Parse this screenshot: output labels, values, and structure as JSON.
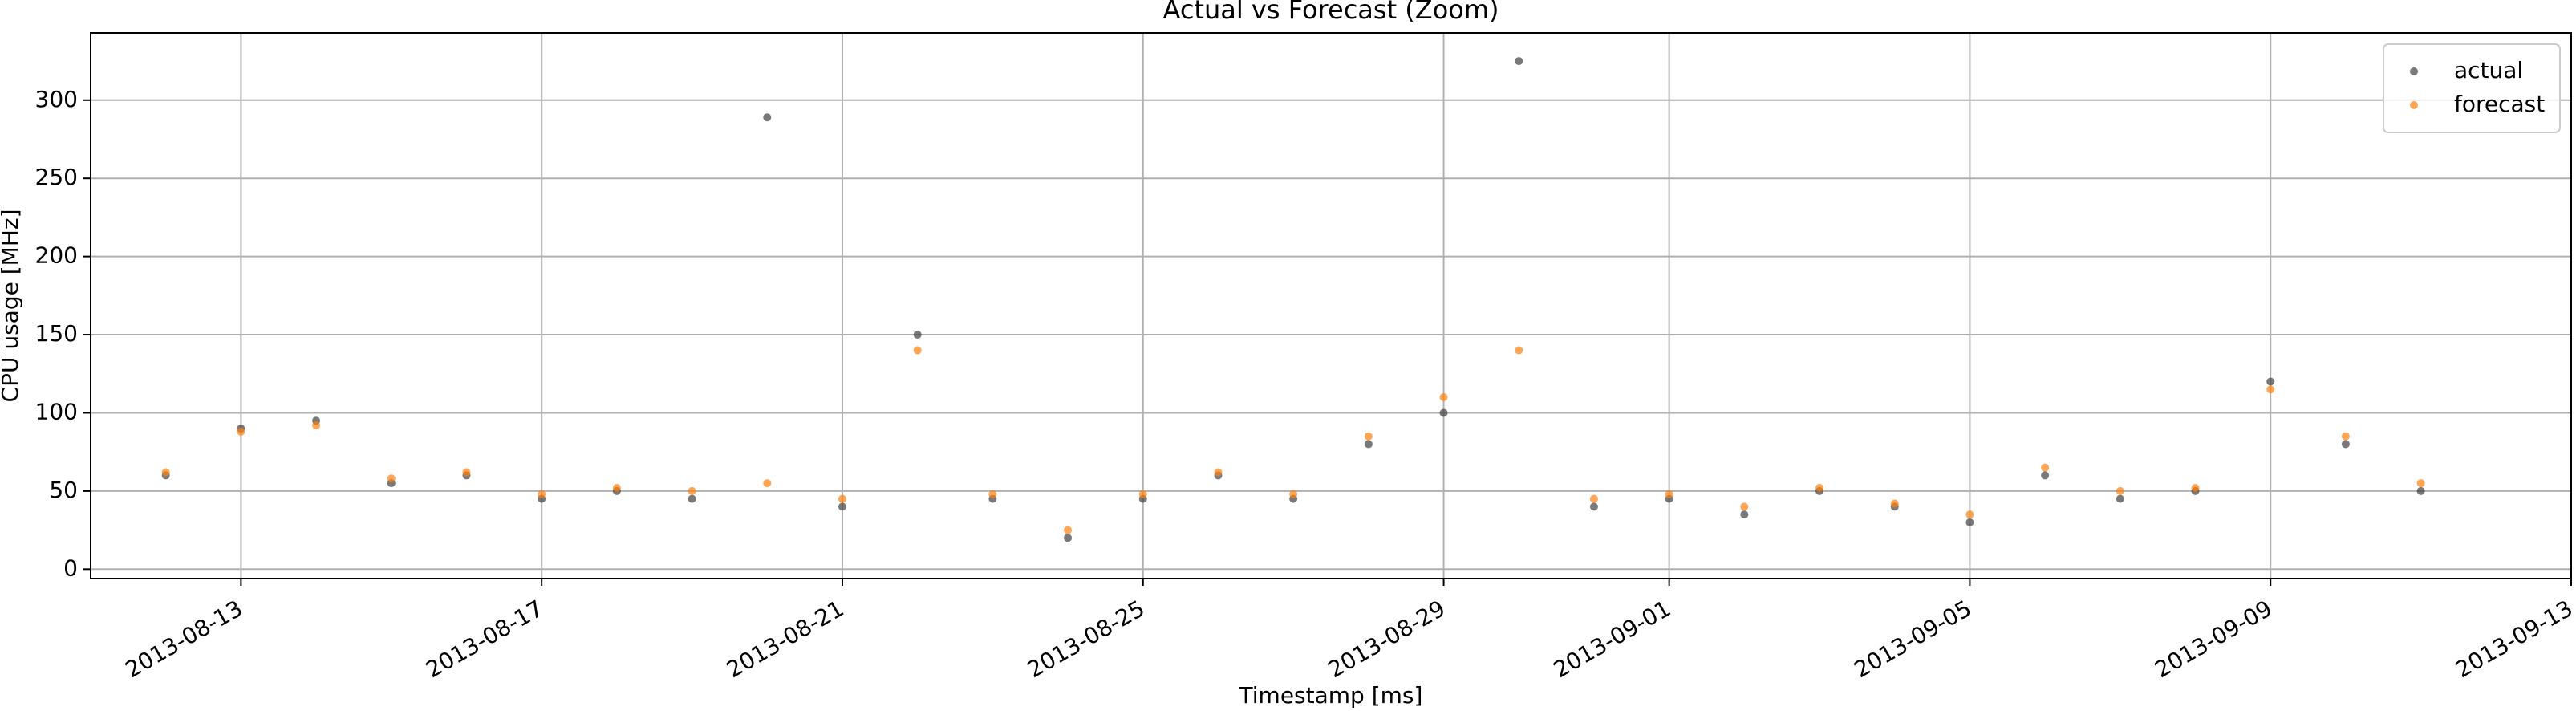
{
  "chart_data": {
    "type": "scatter",
    "title": "Actual vs Forecast (Zoom)",
    "x_label": "Timestamp [ms]",
    "y_label": "CPU usage [MHz]",
    "x": [
      "2013-08-12",
      "2013-08-13",
      "2013-08-14",
      "2013-08-15",
      "2013-08-16",
      "2013-08-17",
      "2013-08-18",
      "2013-08-19",
      "2013-08-20",
      "2013-08-21",
      "2013-08-22",
      "2013-08-23",
      "2013-08-24",
      "2013-08-25",
      "2013-08-26",
      "2013-08-27",
      "2013-08-28",
      "2013-08-29",
      "2013-08-30",
      "2013-08-31",
      "2013-09-01",
      "2013-09-02",
      "2013-09-03",
      "2013-09-04",
      "2013-09-05",
      "2013-09-06",
      "2013-09-07",
      "2013-09-08",
      "2013-09-09",
      "2013-09-10",
      "2013-09-11"
    ],
    "series": [
      {
        "name": "actual",
        "color": "#404040",
        "values": [
          60,
          90,
          95,
          55,
          60,
          45,
          50,
          45,
          289,
          40,
          150,
          45,
          20,
          45,
          60,
          45,
          80,
          100,
          325,
          40,
          45,
          35,
          50,
          40,
          30,
          60,
          45,
          50,
          120,
          80,
          50
        ]
      },
      {
        "name": "forecast",
        "color": "#ff7f0e",
        "values": [
          62,
          88,
          92,
          58,
          62,
          48,
          52,
          50,
          55,
          45,
          140,
          48,
          25,
          48,
          62,
          48,
          85,
          110,
          140,
          45,
          48,
          40,
          52,
          42,
          35,
          65,
          50,
          52,
          115,
          85,
          55
        ]
      }
    ],
    "xlim": [
      "2013-08-11",
      "2013-09-13"
    ],
    "xticks": [
      "2013-08-13",
      "2013-08-17",
      "2013-08-21",
      "2013-08-25",
      "2013-08-29",
      "2013-09-01",
      "2013-09-05",
      "2013-09-09",
      "2013-09-13"
    ],
    "ylim": [
      -6,
      343
    ],
    "yticks": [
      0,
      50,
      100,
      150,
      200,
      250,
      300
    ],
    "grid": true,
    "legend": "upper right"
  }
}
